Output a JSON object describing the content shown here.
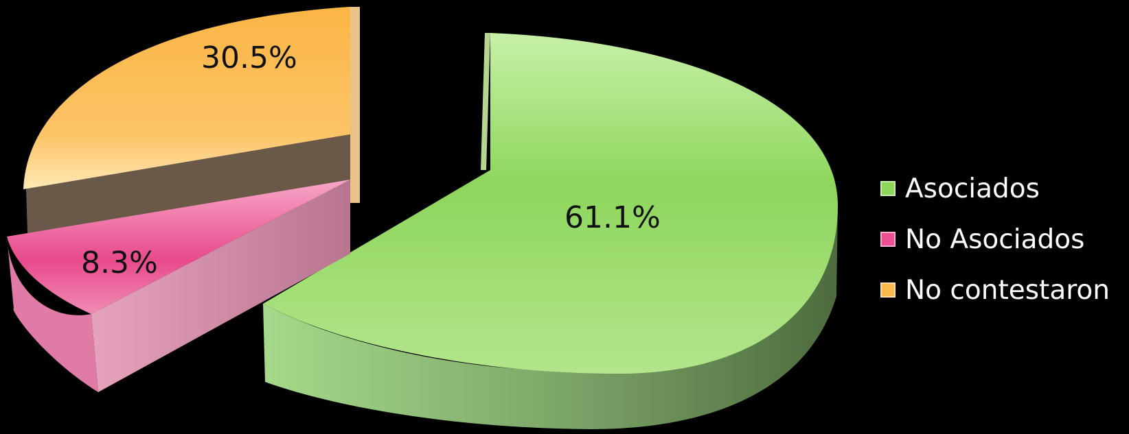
{
  "chart_data": {
    "type": "pie",
    "style": "3d exploded",
    "categories": [
      "Asociados",
      "No Asociados",
      "No contestaron"
    ],
    "values": [
      61.1,
      8.3,
      30.5
    ],
    "labels": [
      "61.1%",
      "8.3%",
      "30.5%"
    ],
    "colors": [
      "#8dd65c",
      "#ec4f92",
      "#fbb84c"
    ],
    "legend_position": "right"
  }
}
